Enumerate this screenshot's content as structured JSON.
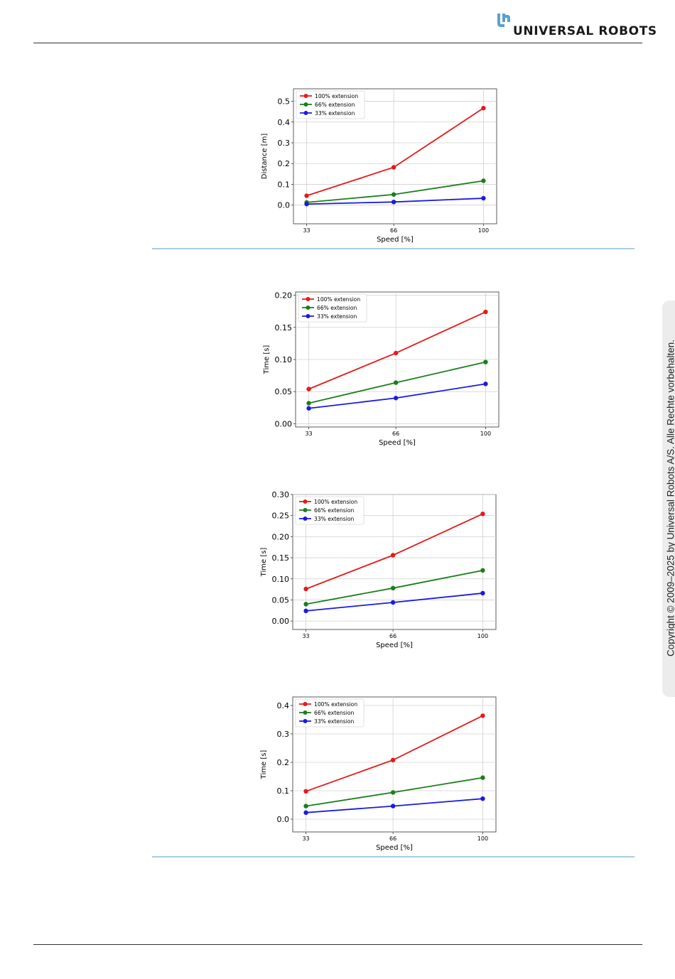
{
  "brand": {
    "name": "UNIVERSAL ROBOTS",
    "logo_icon": "ur-logo-icon",
    "color": "#5aa0cf"
  },
  "sidebar": {
    "copyright": "Copyright © 2009–2025 by Universal Robots A/S. Alle Rechte vorbehalten."
  },
  "colors": {
    "red": "#e41a1a",
    "green": "#1a7f1a",
    "blue": "#1a1ae4",
    "rule": "#a9cce3"
  },
  "chart_data": [
    {
      "type": "line",
      "xlabel": "Speed [%]",
      "ylabel": "Distance [m]",
      "x": [
        33,
        66,
        100
      ],
      "ylim": [
        -0.09,
        0.56
      ],
      "yticks": [
        "0.0",
        "0.1",
        "0.2",
        "0.3",
        "0.4",
        "0.5"
      ],
      "ytick_values": [
        0.0,
        0.1,
        0.2,
        0.3,
        0.4,
        0.5
      ],
      "grid": true,
      "legend": "top-left",
      "series": [
        {
          "name": "100% extension",
          "color": "#e41a1a",
          "values": [
            0.045,
            0.182,
            0.467
          ]
        },
        {
          "name": "66% extension",
          "color": "#1a7f1a",
          "values": [
            0.013,
            0.051,
            0.117
          ]
        },
        {
          "name": "33% extension",
          "color": "#1a1ae4",
          "values": [
            0.005,
            0.015,
            0.033
          ]
        }
      ]
    },
    {
      "type": "line",
      "xlabel": "Speed [%]",
      "ylabel": "Time [s]",
      "x": [
        33,
        66,
        100
      ],
      "ylim": [
        -0.005,
        0.205
      ],
      "yticks": [
        "0.00",
        "0.05",
        "0.10",
        "0.15",
        "0.20"
      ],
      "ytick_values": [
        0.0,
        0.05,
        0.1,
        0.15,
        0.2
      ],
      "grid": true,
      "legend": "top-left",
      "series": [
        {
          "name": "100% extension",
          "color": "#e41a1a",
          "values": [
            0.054,
            0.11,
            0.174
          ]
        },
        {
          "name": "66% extension",
          "color": "#1a7f1a",
          "values": [
            0.032,
            0.064,
            0.096
          ]
        },
        {
          "name": "33% extension",
          "color": "#1a1ae4",
          "values": [
            0.024,
            0.04,
            0.062
          ]
        }
      ]
    },
    {
      "type": "line",
      "xlabel": "Speed [%]",
      "ylabel": "Time [s]",
      "x": [
        33,
        66,
        100
      ],
      "ylim": [
        -0.02,
        0.3
      ],
      "yticks": [
        "0.00",
        "0.05",
        "0.10",
        "0.15",
        "0.20",
        "0.25",
        "0.30"
      ],
      "ytick_values": [
        0.0,
        0.05,
        0.1,
        0.15,
        0.2,
        0.25,
        0.3
      ],
      "grid": true,
      "legend": "top-left",
      "series": [
        {
          "name": "100% extension",
          "color": "#e41a1a",
          "values": [
            0.076,
            0.156,
            0.254
          ]
        },
        {
          "name": "66% extension",
          "color": "#1a7f1a",
          "values": [
            0.04,
            0.078,
            0.12
          ]
        },
        {
          "name": "33% extension",
          "color": "#1a1ae4",
          "values": [
            0.024,
            0.044,
            0.066
          ]
        }
      ]
    },
    {
      "type": "line",
      "xlabel": "Speed [%]",
      "ylabel": "Time [s]",
      "x": [
        33,
        66,
        100
      ],
      "ylim": [
        -0.045,
        0.43
      ],
      "yticks": [
        "0.0",
        "0.1",
        "0.2",
        "0.3",
        "0.4"
      ],
      "ytick_values": [
        0.0,
        0.1,
        0.2,
        0.3,
        0.4
      ],
      "grid": true,
      "legend": "top-left",
      "series": [
        {
          "name": "100% extension",
          "color": "#e41a1a",
          "values": [
            0.098,
            0.208,
            0.364
          ]
        },
        {
          "name": "66% extension",
          "color": "#1a7f1a",
          "values": [
            0.046,
            0.094,
            0.146
          ]
        },
        {
          "name": "33% extension",
          "color": "#1a1ae4",
          "values": [
            0.023,
            0.046,
            0.072
          ]
        }
      ]
    }
  ]
}
